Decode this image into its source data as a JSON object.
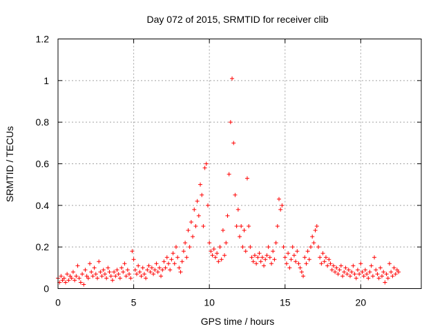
{
  "chart_data": {
    "type": "scatter",
    "title": "Day 072 of 2015, SRMTID for receiver clib",
    "xlabel": "GPS time / hours",
    "ylabel": "SRMTID / TECUs",
    "xlim": [
      0,
      24
    ],
    "ylim": [
      0,
      1.2
    ],
    "xticks": [
      0,
      5,
      10,
      15,
      20
    ],
    "xtick_labels": [
      "0",
      "5",
      "10",
      "15",
      "20"
    ],
    "yticks": [
      0,
      0.2,
      0.4,
      0.6,
      0.8,
      1.0,
      1.2
    ],
    "ytick_labels": [
      "0",
      "0.2",
      "0.4",
      "0.6",
      "0.8",
      "1",
      "1.2"
    ],
    "grid": true,
    "marker": "+",
    "series": [
      {
        "name": "SRMTID",
        "color": "#ff0000",
        "points": [
          [
            0.0,
            0.05
          ],
          [
            0.1,
            0.03
          ],
          [
            0.2,
            0.06
          ],
          [
            0.3,
            0.04
          ],
          [
            0.4,
            0.05
          ],
          [
            0.5,
            0.03
          ],
          [
            0.6,
            0.07
          ],
          [
            0.7,
            0.04
          ],
          [
            0.8,
            0.06
          ],
          [
            0.9,
            0.05
          ],
          [
            1.0,
            0.08
          ],
          [
            1.1,
            0.04
          ],
          [
            1.2,
            0.06
          ],
          [
            1.3,
            0.11
          ],
          [
            1.4,
            0.05
          ],
          [
            1.5,
            0.03
          ],
          [
            1.6,
            0.07
          ],
          [
            1.7,
            0.02
          ],
          [
            1.8,
            0.09
          ],
          [
            1.9,
            0.06
          ],
          [
            2.0,
            0.05
          ],
          [
            2.1,
            0.12
          ],
          [
            2.2,
            0.08
          ],
          [
            2.3,
            0.06
          ],
          [
            2.4,
            0.1
          ],
          [
            2.5,
            0.07
          ],
          [
            2.6,
            0.05
          ],
          [
            2.7,
            0.13
          ],
          [
            2.8,
            0.08
          ],
          [
            2.9,
            0.06
          ],
          [
            3.0,
            0.09
          ],
          [
            3.1,
            0.07
          ],
          [
            3.2,
            0.05
          ],
          [
            3.3,
            0.1
          ],
          [
            3.4,
            0.08
          ],
          [
            3.5,
            0.06
          ],
          [
            3.6,
            0.04
          ],
          [
            3.7,
            0.08
          ],
          [
            3.8,
            0.06
          ],
          [
            3.9,
            0.09
          ],
          [
            4.0,
            0.07
          ],
          [
            4.1,
            0.05
          ],
          [
            4.2,
            0.1
          ],
          [
            4.3,
            0.08
          ],
          [
            4.4,
            0.12
          ],
          [
            4.5,
            0.06
          ],
          [
            4.6,
            0.09
          ],
          [
            4.7,
            0.07
          ],
          [
            4.8,
            0.05
          ],
          [
            4.9,
            0.18
          ],
          [
            5.0,
            0.14
          ],
          [
            5.1,
            0.09
          ],
          [
            5.2,
            0.07
          ],
          [
            5.3,
            0.11
          ],
          [
            5.4,
            0.08
          ],
          [
            5.5,
            0.06
          ],
          [
            5.6,
            0.1
          ],
          [
            5.7,
            0.07
          ],
          [
            5.8,
            0.05
          ],
          [
            5.9,
            0.09
          ],
          [
            6.0,
            0.11
          ],
          [
            6.1,
            0.08
          ],
          [
            6.2,
            0.1
          ],
          [
            6.3,
            0.07
          ],
          [
            6.4,
            0.09
          ],
          [
            6.5,
            0.12
          ],
          [
            6.6,
            0.08
          ],
          [
            6.7,
            0.1
          ],
          [
            6.8,
            0.06
          ],
          [
            6.9,
            0.09
          ],
          [
            7.0,
            0.13
          ],
          [
            7.1,
            0.1
          ],
          [
            7.2,
            0.15
          ],
          [
            7.3,
            0.12
          ],
          [
            7.4,
            0.09
          ],
          [
            7.5,
            0.14
          ],
          [
            7.6,
            0.17
          ],
          [
            7.7,
            0.12
          ],
          [
            7.8,
            0.2
          ],
          [
            7.9,
            0.15
          ],
          [
            8.0,
            0.1
          ],
          [
            8.1,
            0.08
          ],
          [
            8.2,
            0.13
          ],
          [
            8.3,
            0.18
          ],
          [
            8.4,
            0.22
          ],
          [
            8.5,
            0.15
          ],
          [
            8.6,
            0.28
          ],
          [
            8.7,
            0.2
          ],
          [
            8.8,
            0.32
          ],
          [
            8.9,
            0.25
          ],
          [
            9.0,
            0.38
          ],
          [
            9.1,
            0.3
          ],
          [
            9.2,
            0.42
          ],
          [
            9.3,
            0.35
          ],
          [
            9.4,
            0.5
          ],
          [
            9.5,
            0.45
          ],
          [
            9.6,
            0.3
          ],
          [
            9.7,
            0.58
          ],
          [
            9.8,
            0.6
          ],
          [
            9.9,
            0.4
          ],
          [
            10.0,
            0.22
          ],
          [
            10.1,
            0.18
          ],
          [
            10.2,
            0.16
          ],
          [
            10.3,
            0.19
          ],
          [
            10.4,
            0.15
          ],
          [
            10.5,
            0.17
          ],
          [
            10.6,
            0.13
          ],
          [
            10.7,
            0.2
          ],
          [
            10.8,
            0.14
          ],
          [
            10.9,
            0.28
          ],
          [
            11.0,
            0.16
          ],
          [
            11.1,
            0.22
          ],
          [
            11.2,
            0.35
          ],
          [
            11.3,
            0.55
          ],
          [
            11.4,
            0.8
          ],
          [
            11.5,
            1.01
          ],
          [
            11.6,
            0.7
          ],
          [
            11.7,
            0.45
          ],
          [
            11.8,
            0.3
          ],
          [
            11.9,
            0.38
          ],
          [
            12.0,
            0.25
          ],
          [
            12.1,
            0.3
          ],
          [
            12.2,
            0.2
          ],
          [
            12.3,
            0.28
          ],
          [
            12.4,
            0.18
          ],
          [
            12.5,
            0.53
          ],
          [
            12.6,
            0.3
          ],
          [
            12.7,
            0.2
          ],
          [
            12.8,
            0.15
          ],
          [
            12.9,
            0.13
          ],
          [
            13.0,
            0.16
          ],
          [
            13.1,
            0.12
          ],
          [
            13.2,
            0.15
          ],
          [
            13.3,
            0.17
          ],
          [
            13.4,
            0.13
          ],
          [
            13.5,
            0.15
          ],
          [
            13.6,
            0.11
          ],
          [
            13.7,
            0.14
          ],
          [
            13.8,
            0.16
          ],
          [
            13.9,
            0.2
          ],
          [
            14.0,
            0.15
          ],
          [
            14.1,
            0.12
          ],
          [
            14.2,
            0.18
          ],
          [
            14.3,
            0.14
          ],
          [
            14.4,
            0.22
          ],
          [
            14.5,
            0.3
          ],
          [
            14.6,
            0.43
          ],
          [
            14.7,
            0.38
          ],
          [
            14.8,
            0.4
          ],
          [
            14.9,
            0.2
          ],
          [
            15.0,
            0.15
          ],
          [
            15.1,
            0.12
          ],
          [
            15.2,
            0.17
          ],
          [
            15.3,
            0.1
          ],
          [
            15.4,
            0.14
          ],
          [
            15.5,
            0.2
          ],
          [
            15.6,
            0.16
          ],
          [
            15.7,
            0.13
          ],
          [
            15.8,
            0.18
          ],
          [
            15.9,
            0.12
          ],
          [
            16.0,
            0.1
          ],
          [
            16.1,
            0.08
          ],
          [
            16.2,
            0.06
          ],
          [
            16.3,
            0.15
          ],
          [
            16.4,
            0.12
          ],
          [
            16.5,
            0.18
          ],
          [
            16.6,
            0.14
          ],
          [
            16.7,
            0.2
          ],
          [
            16.8,
            0.25
          ],
          [
            16.9,
            0.22
          ],
          [
            17.0,
            0.28
          ],
          [
            17.1,
            0.3
          ],
          [
            17.2,
            0.2
          ],
          [
            17.3,
            0.15
          ],
          [
            17.4,
            0.12
          ],
          [
            17.5,
            0.17
          ],
          [
            17.6,
            0.13
          ],
          [
            17.7,
            0.15
          ],
          [
            17.8,
            0.11
          ],
          [
            17.9,
            0.14
          ],
          [
            18.0,
            0.12
          ],
          [
            18.1,
            0.09
          ],
          [
            18.2,
            0.11
          ],
          [
            18.3,
            0.08
          ],
          [
            18.4,
            0.1
          ],
          [
            18.5,
            0.07
          ],
          [
            18.6,
            0.09
          ],
          [
            18.7,
            0.11
          ],
          [
            18.8,
            0.06
          ],
          [
            18.9,
            0.08
          ],
          [
            19.0,
            0.1
          ],
          [
            19.1,
            0.07
          ],
          [
            19.2,
            0.09
          ],
          [
            19.3,
            0.06
          ],
          [
            19.4,
            0.08
          ],
          [
            19.5,
            0.11
          ],
          [
            19.6,
            0.07
          ],
          [
            19.7,
            0.05
          ],
          [
            19.8,
            0.09
          ],
          [
            19.9,
            0.07
          ],
          [
            20.0,
            0.12
          ],
          [
            20.1,
            0.08
          ],
          [
            20.2,
            0.06
          ],
          [
            20.3,
            0.09
          ],
          [
            20.4,
            0.07
          ],
          [
            20.5,
            0.05
          ],
          [
            20.6,
            0.08
          ],
          [
            20.7,
            0.11
          ],
          [
            20.8,
            0.06
          ],
          [
            20.9,
            0.15
          ],
          [
            21.0,
            0.09
          ],
          [
            21.1,
            0.07
          ],
          [
            21.2,
            0.05
          ],
          [
            21.3,
            0.1
          ],
          [
            21.4,
            0.06
          ],
          [
            21.5,
            0.08
          ],
          [
            21.6,
            0.03
          ],
          [
            21.7,
            0.07
          ],
          [
            21.8,
            0.05
          ],
          [
            21.9,
            0.12
          ],
          [
            22.0,
            0.08
          ],
          [
            22.1,
            0.06
          ],
          [
            22.2,
            0.1
          ],
          [
            22.3,
            0.07
          ],
          [
            22.4,
            0.09
          ],
          [
            22.5,
            0.08
          ]
        ]
      }
    ]
  }
}
